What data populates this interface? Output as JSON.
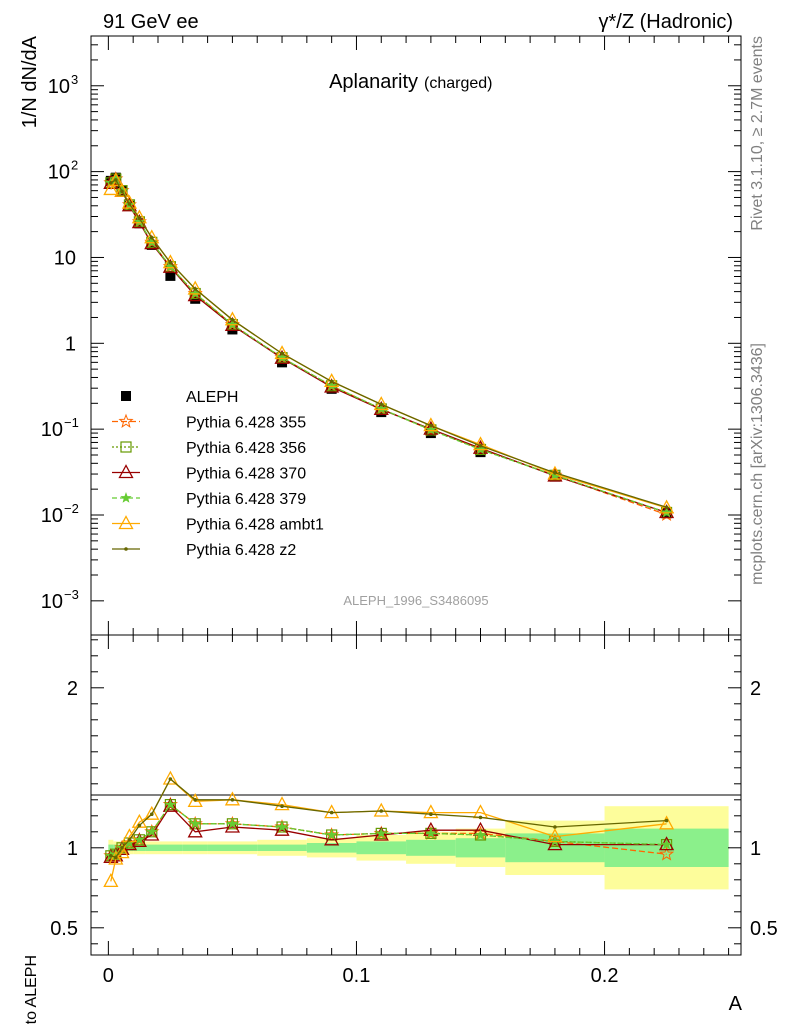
{
  "header": {
    "left": "91 GeV ee",
    "right": "γ*/Z (Hadronic)"
  },
  "side_labels": {
    "top": "Rivet 3.1.10, ≥ 2.7M events",
    "bottom": "mcplots.cern.ch [arXiv:1306.3436]"
  },
  "chart_data": [
    {
      "type": "line",
      "title": "Aplanarity",
      "subtitle": "(charged)",
      "ylabel": "1/N dN/dA",
      "xlabel": "",
      "xlim": [
        -0.007,
        0.255
      ],
      "ylim": [
        0.0004,
        3800
      ],
      "yscale": "log",
      "yticks": [
        {
          "v": 0.001,
          "b": "10",
          "e": "−3"
        },
        {
          "v": 0.01,
          "b": "10",
          "e": "−2"
        },
        {
          "v": 0.1,
          "b": "10",
          "e": "−1"
        },
        {
          "v": 1,
          "b": "1",
          "e": ""
        },
        {
          "v": 10,
          "b": "10",
          "e": ""
        },
        {
          "v": 100,
          "b": "10",
          "e": "2"
        },
        {
          "v": 1000,
          "b": "10",
          "e": "3"
        }
      ],
      "watermark": "ALEPH_1996_S3486095",
      "x": [
        0.001,
        0.003,
        0.0055,
        0.0085,
        0.0125,
        0.0175,
        0.025,
        0.035,
        0.05,
        0.07,
        0.09,
        0.11,
        0.13,
        0.15,
        0.18,
        0.225
      ],
      "series": [
        {
          "name": "ALEPH",
          "style": "data",
          "color": "#000000",
          "values": [
            78,
            85,
            60,
            40,
            25,
            14,
            6.1,
            3.3,
            1.45,
            0.6,
            0.295,
            0.158,
            0.09,
            0.054,
            0.028,
            0.0105
          ]
        },
        {
          "name": "Pythia 6.428 355",
          "style": "star",
          "dash": "6,3",
          "color": "#ff6600",
          "values": [
            74,
            82,
            60,
            41,
            26,
            15,
            7.8,
            3.8,
            1.65,
            0.68,
            0.32,
            0.172,
            0.098,
            0.059,
            0.029,
            0.0101
          ]
        },
        {
          "name": "Pythia 6.428 356",
          "style": "square",
          "dash": "2,2",
          "color": "#669900",
          "values": [
            74,
            82,
            60,
            41,
            26,
            15,
            7.8,
            3.8,
            1.65,
            0.68,
            0.32,
            0.172,
            0.098,
            0.058,
            0.029,
            0.0107
          ]
        },
        {
          "name": "Pythia 6.428 370",
          "style": "triangle",
          "dash": "",
          "color": "#990000",
          "values": [
            73,
            80,
            59,
            40,
            25.5,
            14.5,
            7.7,
            3.6,
            1.62,
            0.67,
            0.31,
            0.17,
            0.1,
            0.06,
            0.0285,
            0.0107
          ]
        },
        {
          "name": "Pythia 6.428 379",
          "style": "smallstar",
          "dash": "5,3",
          "color": "#66cc33",
          "values": [
            74,
            82,
            60,
            41,
            26,
            15,
            7.8,
            3.8,
            1.65,
            0.68,
            0.32,
            0.172,
            0.098,
            0.058,
            0.029,
            0.0107
          ]
        },
        {
          "name": "Pythia 6.428 ambt1",
          "style": "triangle",
          "dash": "",
          "color": "#ffaa00",
          "values": [
            62,
            79,
            59,
            43,
            29,
            17,
            8.7,
            4.3,
            1.88,
            0.76,
            0.36,
            0.194,
            0.11,
            0.066,
            0.03,
            0.0121
          ]
        },
        {
          "name": "Pythia 6.428 z2",
          "style": "dot",
          "dash": "",
          "color": "#666600",
          "values": [
            74,
            80,
            59,
            42,
            28.5,
            17,
            8.7,
            4.3,
            1.88,
            0.76,
            0.36,
            0.194,
            0.11,
            0.064,
            0.031,
            0.0123
          ]
        }
      ]
    },
    {
      "type": "line",
      "ylabel": "Ratio to ALEPH",
      "xlabel": "A",
      "xlim": [
        -0.007,
        0.255
      ],
      "ylim": [
        0.33,
        2.33
      ],
      "yticks": [
        0.5,
        1,
        2
      ],
      "xticks": [
        0,
        0.1,
        0.2
      ],
      "xticklabels": [
        "0",
        "0.1",
        "0.2"
      ],
      "bands": {
        "bins": [
          [
            0,
            0.002
          ],
          [
            0.002,
            0.004
          ],
          [
            0.004,
            0.007
          ],
          [
            0.007,
            0.01
          ],
          [
            0.01,
            0.015
          ],
          [
            0.015,
            0.02
          ],
          [
            0.02,
            0.03
          ],
          [
            0.03,
            0.04
          ],
          [
            0.04,
            0.06
          ],
          [
            0.06,
            0.08
          ],
          [
            0.08,
            0.1
          ],
          [
            0.1,
            0.12
          ],
          [
            0.12,
            0.14
          ],
          [
            0.14,
            0.16
          ],
          [
            0.16,
            0.2
          ],
          [
            0.2,
            0.25
          ]
        ],
        "stat": [
          0.02,
          0.02,
          0.02,
          0.02,
          0.02,
          0.02,
          0.02,
          0.02,
          0.02,
          0.02,
          0.03,
          0.04,
          0.05,
          0.06,
          0.09,
          0.12
        ],
        "total": [
          0.05,
          0.04,
          0.04,
          0.04,
          0.04,
          0.04,
          0.04,
          0.04,
          0.04,
          0.05,
          0.06,
          0.08,
          0.1,
          0.12,
          0.17,
          0.26
        ],
        "stat_color": "#8bf08b",
        "total_color": "#fdfd9b"
      },
      "x": [
        0.001,
        0.003,
        0.0055,
        0.0085,
        0.0125,
        0.0175,
        0.025,
        0.035,
        0.05,
        0.07,
        0.09,
        0.11,
        0.13,
        0.15,
        0.18,
        0.225
      ],
      "series": [
        {
          "name": "Pythia 6.428 355",
          "style": "star",
          "dash": "6,3",
          "color": "#ff6600",
          "values": [
            0.95,
            0.96,
            1.0,
            1.03,
            1.05,
            1.1,
            1.27,
            1.15,
            1.15,
            1.13,
            1.08,
            1.09,
            1.09,
            1.09,
            1.04,
            0.96
          ]
        },
        {
          "name": "Pythia 6.428 356",
          "style": "square",
          "dash": "2,2",
          "color": "#669900",
          "values": [
            0.95,
            0.96,
            1.0,
            1.03,
            1.05,
            1.1,
            1.27,
            1.15,
            1.15,
            1.13,
            1.08,
            1.09,
            1.09,
            1.08,
            1.04,
            1.02
          ]
        },
        {
          "name": "Pythia 6.428 370",
          "style": "triangle",
          "dash": "",
          "color": "#990000",
          "values": [
            0.94,
            0.95,
            0.99,
            1.02,
            1.04,
            1.08,
            1.26,
            1.1,
            1.13,
            1.11,
            1.05,
            1.08,
            1.11,
            1.11,
            1.02,
            1.02
          ]
        },
        {
          "name": "Pythia 6.428 379",
          "style": "smallstar",
          "dash": "5,3",
          "color": "#66cc33",
          "values": [
            0.95,
            0.96,
            1.0,
            1.03,
            1.05,
            1.1,
            1.27,
            1.15,
            1.15,
            1.13,
            1.08,
            1.09,
            1.09,
            1.08,
            1.04,
            1.02
          ]
        },
        {
          "name": "Pythia 6.428 ambt1",
          "style": "triangle",
          "dash": "",
          "color": "#ffaa00",
          "values": [
            0.79,
            0.93,
            0.97,
            1.07,
            1.16,
            1.21,
            1.43,
            1.29,
            1.3,
            1.27,
            1.22,
            1.23,
            1.22,
            1.22,
            1.07,
            1.15
          ]
        },
        {
          "name": "Pythia 6.428 z2",
          "style": "dot",
          "dash": "",
          "color": "#666600",
          "values": [
            0.95,
            0.94,
            1.0,
            1.05,
            1.14,
            1.21,
            1.43,
            1.3,
            1.3,
            1.26,
            1.22,
            1.23,
            1.21,
            1.19,
            1.13,
            1.17
          ]
        }
      ]
    }
  ]
}
